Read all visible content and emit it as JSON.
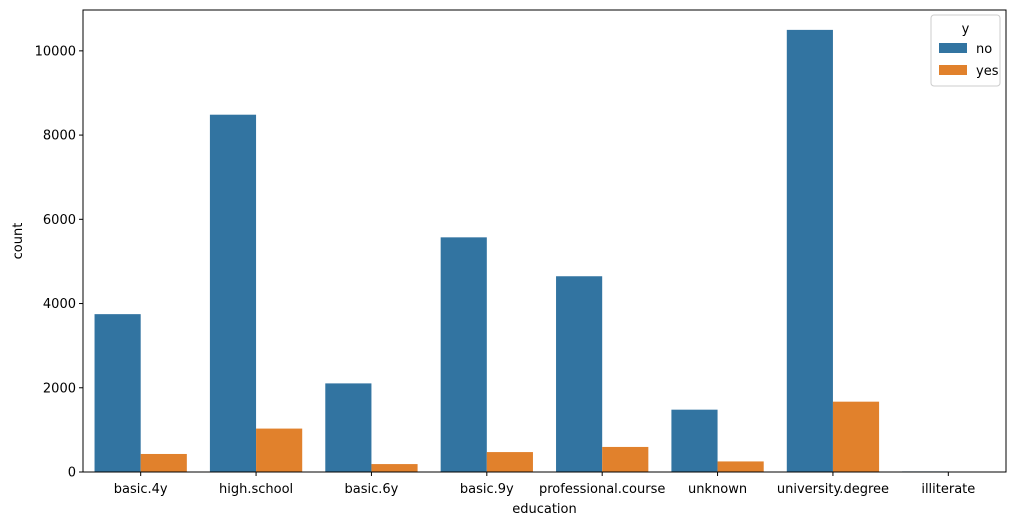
{
  "chart_data": {
    "type": "bar",
    "title": "",
    "xlabel": "education",
    "ylabel": "count",
    "categories": [
      "basic.4y",
      "high.school",
      "basic.6y",
      "basic.9y",
      "professional.course",
      "unknown",
      "university.degree",
      "illiterate"
    ],
    "series": [
      {
        "name": "no",
        "color": "#3274a1",
        "values": [
          3748,
          8484,
          2104,
          5572,
          4648,
          1480,
          10498,
          14
        ]
      },
      {
        "name": "yes",
        "color": "#e1812c",
        "values": [
          428,
          1031,
          188,
          473,
          595,
          251,
          1670,
          4
        ]
      }
    ],
    "ylim": [
      0,
      10970
    ],
    "yticks": [
      0,
      2000,
      4000,
      6000,
      8000,
      10000
    ],
    "grid": false,
    "legend": {
      "title": "y",
      "position": "top-right"
    }
  }
}
